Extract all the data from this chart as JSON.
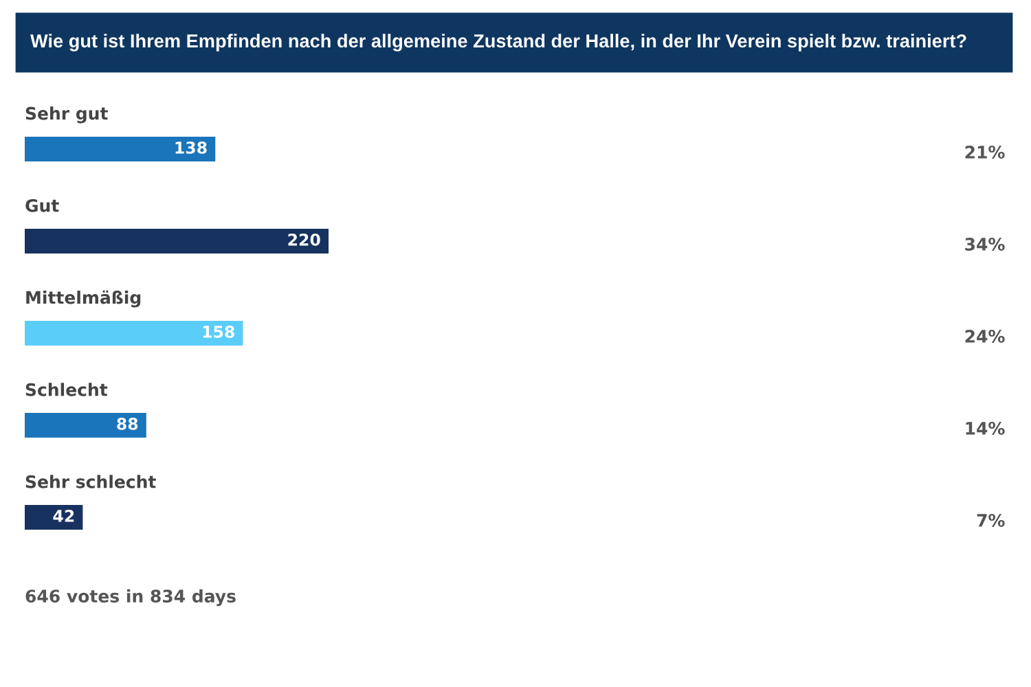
{
  "chart_data": {
    "type": "bar",
    "orientation": "horizontal",
    "title": "Wie gut ist Ihrem Empfinden nach der allgemeine Zustand der Halle, in der Ihr Verein spielt bzw. trainiert?",
    "categories": [
      "Sehr gut",
      "Gut",
      "Mittelmäßig",
      "Schlecht",
      "Sehr schlecht"
    ],
    "values": [
      138,
      220,
      158,
      88,
      42
    ],
    "colors": [
      "#1a75bb",
      "#17325f",
      "#5bcdf9",
      "#1a75bb",
      "#17325f"
    ],
    "data_labels": true,
    "annotations": [
      "21%",
      "34%",
      "24%",
      "14%",
      "7%",
      "646 votes in 834 days"
    ]
  }
}
